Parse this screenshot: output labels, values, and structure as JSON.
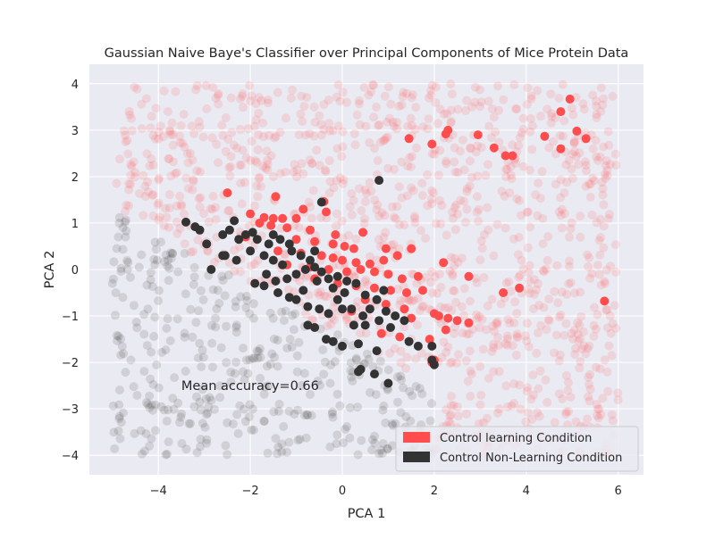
{
  "chart_data": {
    "type": "scatter",
    "title": "Gaussian Naive Baye's Classifier over Principal Components of Mice Protein Data",
    "xlabel": "PCA 1",
    "ylabel": "PCA 2",
    "xlim": [
      -5.5,
      6.55
    ],
    "ylim": [
      -4.42,
      4.42
    ],
    "xticks": [
      -4,
      -2,
      0,
      2,
      4,
      6
    ],
    "xtick_labels": [
      "−4",
      "−2",
      "0",
      "2",
      "4",
      "6"
    ],
    "yticks": [
      -4,
      -3,
      -2,
      -1,
      0,
      1,
      2,
      3,
      4
    ],
    "ytick_labels": [
      "−4",
      "−3",
      "−2",
      "−1",
      "0",
      "1",
      "2",
      "3",
      "4"
    ],
    "grid": true,
    "background": "#eaeaf2",
    "annotation": {
      "text": "Mean accuracy=0.66",
      "x": -3.5,
      "y": -2.5
    },
    "legend": {
      "placement": "lower right",
      "entries": [
        "Control learning Condition",
        "Control Non-Learning Condition"
      ]
    },
    "colors": {
      "learning": "#ff4d4d",
      "nonlearning": "#333333"
    },
    "series": [
      {
        "name": "Control learning Condition",
        "color": "#ff4d4d",
        "points": [
          [
            -2.5,
            1.65
          ],
          [
            -1.45,
            1.57
          ],
          [
            -0.4,
            1.46
          ],
          [
            -0.85,
            1.3
          ],
          [
            -0.35,
            1.24
          ],
          [
            -1.0,
            1.1
          ],
          [
            -2.0,
            1.2
          ],
          [
            -1.7,
            1.12
          ],
          [
            -1.5,
            1.1
          ],
          [
            -1.3,
            1.1
          ],
          [
            -1.8,
            1.0
          ],
          [
            -1.55,
            0.95
          ],
          [
            -1.2,
            0.9
          ],
          [
            -0.7,
            0.85
          ],
          [
            0.45,
            0.8
          ],
          [
            -0.15,
            0.75
          ],
          [
            -2.1,
            0.7
          ],
          [
            -1.0,
            0.65
          ],
          [
            -0.6,
            0.6
          ],
          [
            -0.2,
            0.55
          ],
          [
            0.05,
            0.5
          ],
          [
            0.25,
            0.45
          ],
          [
            0.95,
            0.45
          ],
          [
            1.5,
            0.45
          ],
          [
            -1.4,
            0.4
          ],
          [
            -0.9,
            0.35
          ],
          [
            -0.45,
            0.3
          ],
          [
            -0.2,
            0.25
          ],
          [
            0.0,
            0.2
          ],
          [
            0.3,
            0.15
          ],
          [
            0.6,
            0.12
          ],
          [
            0.9,
            0.2
          ],
          [
            1.2,
            0.3
          ],
          [
            -1.2,
            0.1
          ],
          [
            -0.7,
            0.05
          ],
          [
            -0.3,
            0.0
          ],
          [
            0.1,
            -0.05
          ],
          [
            0.4,
            0.0
          ],
          [
            0.7,
            -0.05
          ],
          [
            1.0,
            -0.1
          ],
          [
            1.3,
            -0.2
          ],
          [
            1.65,
            -0.15
          ],
          [
            -0.6,
            -0.2
          ],
          [
            -0.1,
            -0.3
          ],
          [
            0.3,
            -0.35
          ],
          [
            0.7,
            -0.4
          ],
          [
            1.05,
            -0.45
          ],
          [
            1.4,
            -0.5
          ],
          [
            1.75,
            -0.45
          ],
          [
            0.5,
            -0.65
          ],
          [
            0.95,
            -0.75
          ],
          [
            1.35,
            -0.85
          ],
          [
            1.5,
            -1.05
          ],
          [
            0.2,
            -0.9
          ],
          [
            2.0,
            -0.95
          ],
          [
            2.1,
            -1.0
          ],
          [
            2.3,
            -1.05
          ],
          [
            2.5,
            -1.1
          ],
          [
            2.75,
            -1.15
          ],
          [
            2.25,
            -1.3
          ],
          [
            1.9,
            -1.5
          ],
          [
            2.0,
            -1.95
          ],
          [
            1.95,
            -2.0
          ],
          [
            1.45,
            2.82
          ],
          [
            1.95,
            2.7
          ],
          [
            2.25,
            2.92
          ],
          [
            2.3,
            3.0
          ],
          [
            2.95,
            2.9
          ],
          [
            3.3,
            2.62
          ],
          [
            3.55,
            2.45
          ],
          [
            3.7,
            2.45
          ],
          [
            4.4,
            2.87
          ],
          [
            4.75,
            2.6
          ],
          [
            4.75,
            3.4
          ],
          [
            4.95,
            3.67
          ],
          [
            5.1,
            2.98
          ],
          [
            5.3,
            2.82
          ],
          [
            2.2,
            0.15
          ],
          [
            2.75,
            -0.15
          ],
          [
            3.85,
            -0.4
          ],
          [
            3.5,
            -0.5
          ],
          [
            5.7,
            -0.68
          ],
          [
            0.85,
            -1.38
          ],
          [
            1.25,
            -1.45
          ]
        ]
      },
      {
        "name": "Control Non-Learning Condition",
        "color": "#333333",
        "points": [
          [
            -3.4,
            1.02
          ],
          [
            -3.2,
            0.92
          ],
          [
            -3.1,
            0.85
          ],
          [
            -2.95,
            0.55
          ],
          [
            -2.35,
            1.05
          ],
          [
            -2.45,
            0.85
          ],
          [
            -2.6,
            0.75
          ],
          [
            -2.25,
            0.65
          ],
          [
            -2.55,
            0.3
          ],
          [
            -2.3,
            0.2
          ],
          [
            -1.95,
            0.8
          ],
          [
            -1.85,
            0.65
          ],
          [
            -1.6,
            0.55
          ],
          [
            -1.5,
            0.75
          ],
          [
            -1.35,
            0.65
          ],
          [
            -1.15,
            0.55
          ],
          [
            -1.7,
            0.3
          ],
          [
            -1.5,
            0.2
          ],
          [
            -1.3,
            0.1
          ],
          [
            -1.1,
            0.4
          ],
          [
            -0.9,
            0.3
          ],
          [
            -0.7,
            0.2
          ],
          [
            -0.6,
            0.05
          ],
          [
            -0.8,
            0.0
          ],
          [
            -1.0,
            -0.1
          ],
          [
            -0.45,
            -0.05
          ],
          [
            -0.3,
            -0.2
          ],
          [
            -0.1,
            -0.15
          ],
          [
            -0.2,
            -0.4
          ],
          [
            0.05,
            -0.5
          ],
          [
            0.3,
            -0.3
          ],
          [
            0.5,
            -0.55
          ],
          [
            0.75,
            -0.65
          ],
          [
            0.6,
            -0.85
          ],
          [
            0.95,
            -0.9
          ],
          [
            1.15,
            -1.0
          ],
          [
            1.35,
            -1.1
          ],
          [
            1.45,
            -1.55
          ],
          [
            1.65,
            -1.65
          ],
          [
            1.95,
            -1.95
          ],
          [
            2.0,
            -2.05
          ],
          [
            1.95,
            -1.65
          ],
          [
            -1.9,
            -0.3
          ],
          [
            -1.7,
            -0.35
          ],
          [
            -1.4,
            -0.5
          ],
          [
            -1.15,
            -0.6
          ],
          [
            -1.0,
            -0.65
          ],
          [
            -0.75,
            -0.8
          ],
          [
            -0.5,
            -0.85
          ],
          [
            -0.3,
            -0.95
          ],
          [
            0.0,
            -0.85
          ],
          [
            0.2,
            -0.85
          ],
          [
            0.45,
            -1.0
          ],
          [
            -0.75,
            -1.2
          ],
          [
            -0.6,
            -1.25
          ],
          [
            -0.35,
            -1.5
          ],
          [
            -0.2,
            -1.55
          ],
          [
            0.25,
            -1.2
          ],
          [
            0.5,
            -1.2
          ],
          [
            0.8,
            -1.1
          ],
          [
            0.0,
            -1.65
          ],
          [
            0.35,
            -1.6
          ],
          [
            0.75,
            -1.75
          ],
          [
            0.4,
            -2.15
          ],
          [
            0.35,
            -2.2
          ],
          [
            0.7,
            -2.25
          ],
          [
            1.0,
            -2.45
          ],
          [
            0.8,
            1.92
          ],
          [
            -0.45,
            1.45
          ],
          [
            -2.6,
            0.3
          ],
          [
            -2.0,
            0.4
          ],
          [
            -1.2,
            -0.2
          ],
          [
            -0.85,
            -0.45
          ],
          [
            -0.55,
            -0.25
          ],
          [
            -0.1,
            -0.65
          ],
          [
            0.1,
            -0.25
          ],
          [
            0.9,
            -0.45
          ],
          [
            1.05,
            -1.25
          ],
          [
            -0.6,
            0.4
          ],
          [
            -1.65,
            -0.1
          ],
          [
            -1.45,
            -0.25
          ],
          [
            -2.1,
            0.75
          ],
          [
            -2.85,
            0.0
          ]
        ]
      }
    ]
  }
}
